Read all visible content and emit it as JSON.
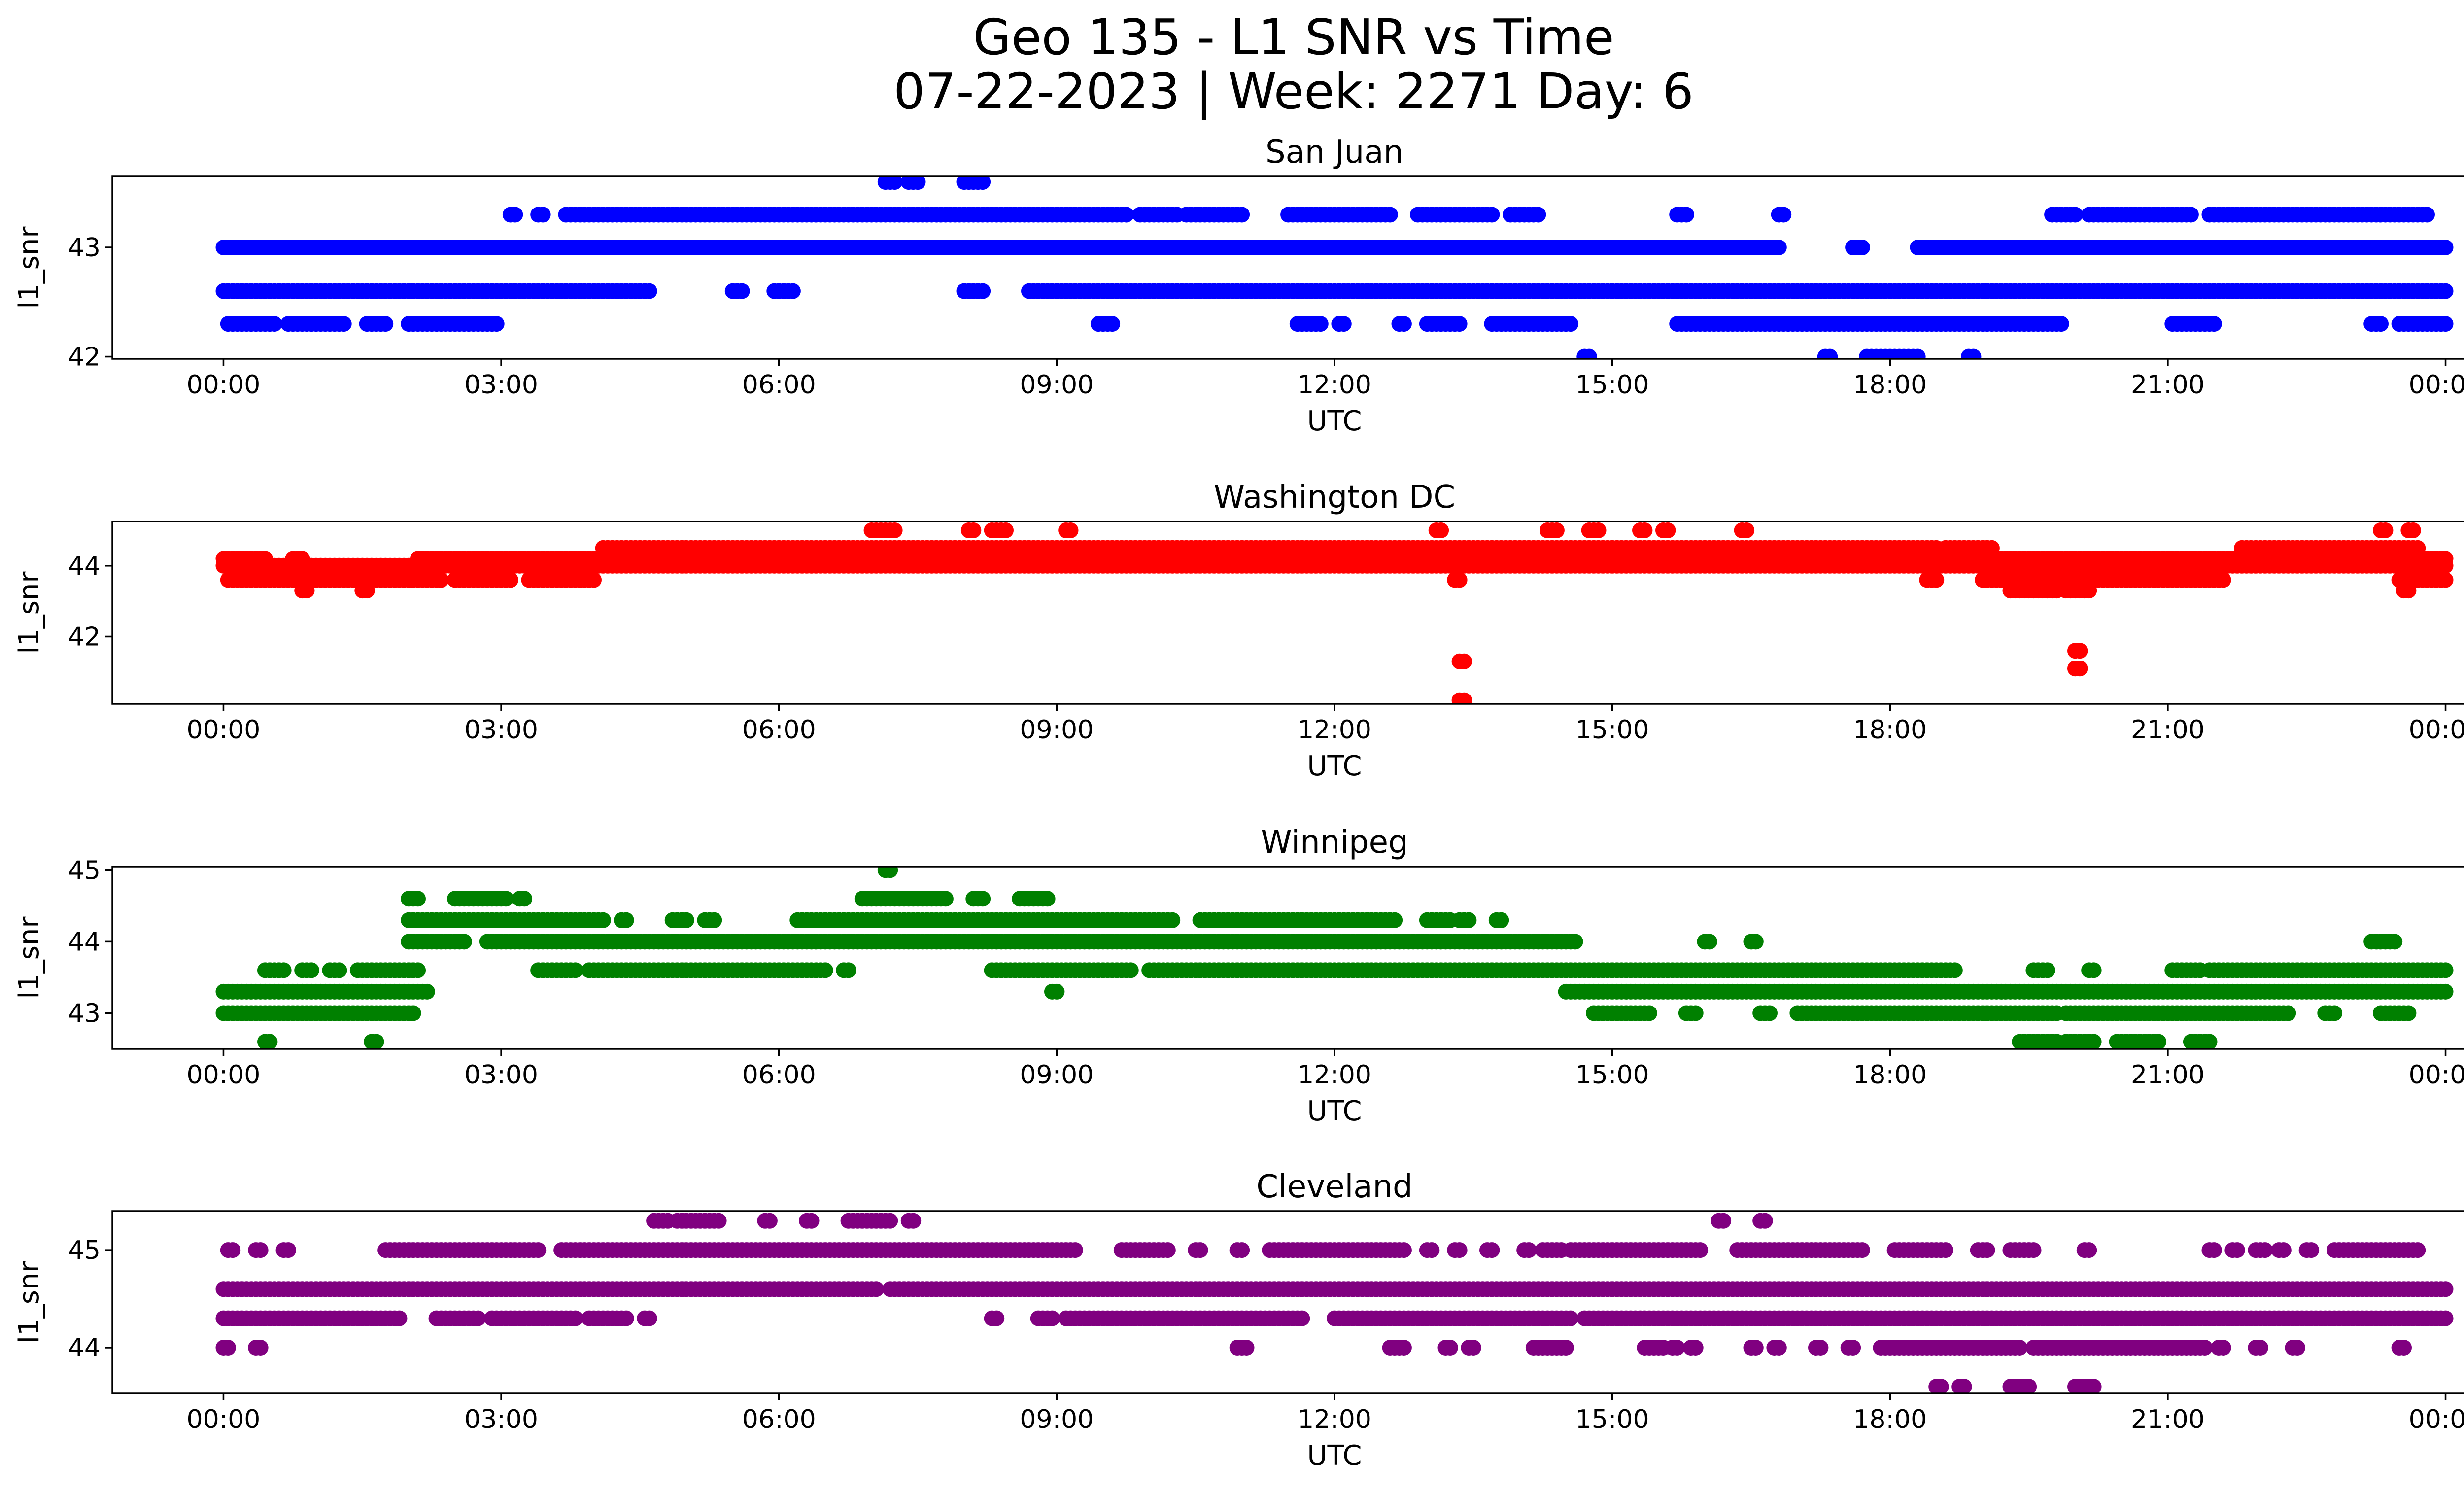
{
  "chart_data": {
    "type": "scatter",
    "title_line1": "Geo 135 - L1 SNR vs Time",
    "title_line2": "07-22-2023 | Week: 2271 Day: 6",
    "x_tick_labels": [
      "00:00",
      "03:00",
      "06:00",
      "09:00",
      "12:00",
      "15:00",
      "18:00",
      "21:00",
      "00:00"
    ],
    "xlim_hours": [
      -1.2,
      25.2
    ],
    "panels": [
      {
        "title": "San Juan",
        "xlabel": "UTC",
        "ylabel": "l1_snr",
        "color": "#0000ff",
        "ylim": [
          41.98,
          43.65
        ],
        "yticks": [
          42,
          43
        ],
        "bands": [
          {
            "y": 43.0,
            "segments": [
              [
                0.0,
                16.8
              ],
              [
                17.6,
                17.7
              ],
              [
                18.3,
                24.0
              ]
            ]
          },
          {
            "y": 42.6,
            "segments": [
              [
                0.0,
                4.6
              ],
              [
                5.5,
                5.6
              ],
              [
                5.95,
                6.15
              ],
              [
                8.0,
                8.2
              ],
              [
                8.7,
                24.0
              ]
            ]
          },
          {
            "y": 42.3,
            "segments": [
              [
                0.05,
                0.55
              ],
              [
                0.7,
                1.3
              ],
              [
                1.55,
                1.75
              ],
              [
                2.0,
                2.95
              ],
              [
                9.45,
                9.6
              ],
              [
                11.6,
                11.85
              ],
              [
                12.05,
                12.1
              ],
              [
                12.7,
                12.75
              ],
              [
                13.0,
                13.35
              ],
              [
                13.7,
                14.55
              ],
              [
                15.7,
                19.85
              ],
              [
                21.05,
                21.5
              ],
              [
                23.2,
                23.3
              ],
              [
                23.5,
                24.0
              ]
            ]
          },
          {
            "y": 43.3,
            "segments": [
              [
                3.1,
                3.15
              ],
              [
                3.4,
                3.45
              ],
              [
                3.7,
                9.75
              ],
              [
                9.9,
                10.3
              ],
              [
                10.4,
                11.0
              ],
              [
                11.5,
                12.6
              ],
              [
                12.9,
                13.7
              ],
              [
                13.9,
                14.2
              ],
              [
                15.7,
                15.8
              ],
              [
                16.8,
                16.85
              ],
              [
                19.75,
                20.0
              ],
              [
                20.15,
                21.25
              ],
              [
                21.45,
                23.8
              ]
            ]
          },
          {
            "y": 43.6,
            "segments": [
              [
                7.15,
                7.25
              ],
              [
                7.4,
                7.5
              ],
              [
                8.0,
                8.2
              ]
            ]
          },
          {
            "y": 42.0,
            "segments": [
              [
                14.7,
                14.75
              ],
              [
                17.3,
                17.35
              ],
              [
                17.75,
                18.3
              ],
              [
                18.85,
                18.9
              ]
            ]
          }
        ]
      },
      {
        "title": "Washington DC",
        "xlabel": "UTC",
        "ylabel": "l1_snr",
        "color": "#ff0000",
        "ylim": [
          40.1,
          45.25
        ],
        "yticks": [
          42,
          44
        ],
        "bands": [
          {
            "y": 44.0,
            "segments": [
              [
                0.0,
                24.0
              ]
            ]
          },
          {
            "y": 43.6,
            "segments": [
              [
                0.05,
                2.35
              ],
              [
                2.5,
                3.1
              ],
              [
                3.3,
                4.0
              ],
              [
                13.3,
                13.35
              ],
              [
                18.4,
                18.5
              ],
              [
                19.0,
                21.6
              ],
              [
                23.5,
                24.0
              ]
            ]
          },
          {
            "y": 44.2,
            "segments": [
              [
                0.0,
                0.45
              ],
              [
                0.75,
                0.85
              ],
              [
                2.1,
                24.0
              ]
            ]
          },
          {
            "y": 44.5,
            "segments": [
              [
                4.1,
                18.5
              ],
              [
                18.6,
                19.1
              ],
              [
                21.8,
                23.7
              ]
            ]
          },
          {
            "y": 45.0,
            "segments": [
              [
                7.0,
                7.25
              ],
              [
                8.05,
                8.1
              ],
              [
                8.3,
                8.45
              ],
              [
                9.1,
                9.15
              ],
              [
                13.1,
                13.15
              ],
              [
                14.3,
                14.4
              ],
              [
                14.75,
                14.85
              ],
              [
                15.3,
                15.35
              ],
              [
                15.55,
                15.6
              ],
              [
                16.4,
                16.45
              ],
              [
                23.3,
                23.35
              ],
              [
                23.6,
                23.65
              ]
            ]
          },
          {
            "y": 43.3,
            "segments": [
              [
                0.85,
                0.9
              ],
              [
                1.5,
                1.55
              ],
              [
                19.3,
                19.8
              ],
              [
                19.9,
                20.15
              ],
              [
                23.55,
                23.6
              ]
            ]
          },
          {
            "y": 41.6,
            "segments": [
              [
                20.0,
                20.05
              ]
            ]
          },
          {
            "y": 41.3,
            "segments": [
              [
                13.35,
                13.4
              ]
            ]
          },
          {
            "y": 41.1,
            "segments": [
              [
                20.0,
                20.05
              ]
            ]
          },
          {
            "y": 40.2,
            "segments": [
              [
                13.35,
                13.4
              ]
            ]
          }
        ]
      },
      {
        "title": "Winnipeg",
        "xlabel": "UTC",
        "ylabel": "l1_snr",
        "color": "#008000",
        "ylim": [
          42.5,
          45.05
        ],
        "yticks": [
          43,
          44,
          45
        ],
        "bands": [
          {
            "y": 43.0,
            "segments": [
              [
                0.0,
                2.05
              ],
              [
                14.8,
                15.4
              ],
              [
                15.8,
                15.9
              ],
              [
                16.6,
                16.7
              ],
              [
                17.0,
                19.8
              ],
              [
                19.9,
                22.3
              ],
              [
                22.7,
                22.8
              ],
              [
                23.3,
                23.6
              ]
            ]
          },
          {
            "y": 43.3,
            "segments": [
              [
                0.0,
                2.2
              ],
              [
                8.95,
                9.0
              ],
              [
                14.5,
                24.0
              ]
            ]
          },
          {
            "y": 43.6,
            "segments": [
              [
                0.45,
                0.65
              ],
              [
                0.85,
                0.95
              ],
              [
                1.15,
                1.25
              ],
              [
                1.45,
                2.1
              ],
              [
                3.4,
                3.8
              ],
              [
                3.95,
                6.5
              ],
              [
                6.7,
                6.75
              ],
              [
                8.3,
                9.8
              ],
              [
                10.0,
                18.7
              ],
              [
                19.55,
                19.7
              ],
              [
                20.15,
                20.2
              ],
              [
                21.05,
                21.35
              ],
              [
                21.45,
                24.0
              ]
            ]
          },
          {
            "y": 44.0,
            "segments": [
              [
                2.0,
                2.6
              ],
              [
                2.85,
                14.6
              ],
              [
                16.0,
                16.05
              ],
              [
                16.5,
                16.55
              ],
              [
                23.2,
                23.45
              ]
            ]
          },
          {
            "y": 44.3,
            "segments": [
              [
                2.0,
                4.1
              ],
              [
                4.3,
                4.35
              ],
              [
                4.85,
                5.0
              ],
              [
                5.2,
                5.3
              ],
              [
                6.2,
                10.25
              ],
              [
                10.55,
                12.65
              ],
              [
                13.0,
                13.25
              ],
              [
                13.35,
                13.45
              ],
              [
                13.75,
                13.8
              ]
            ]
          },
          {
            "y": 44.6,
            "segments": [
              [
                2.0,
                2.1
              ],
              [
                2.5,
                3.05
              ],
              [
                3.2,
                3.25
              ],
              [
                6.9,
                7.8
              ],
              [
                8.1,
                8.2
              ],
              [
                8.6,
                8.9
              ]
            ]
          },
          {
            "y": 45.0,
            "segments": [
              [
                7.15,
                7.2
              ]
            ]
          },
          {
            "y": 42.6,
            "segments": [
              [
                0.45,
                0.5
              ],
              [
                1.6,
                1.65
              ],
              [
                19.4,
                19.8
              ],
              [
                19.9,
                20.2
              ],
              [
                20.45,
                20.9
              ],
              [
                21.25,
                21.45
              ]
            ]
          }
        ]
      },
      {
        "title": "Cleveland",
        "xlabel": "UTC",
        "ylabel": "l1_snr",
        "color": "#800080",
        "ylim": [
          43.53,
          45.4
        ],
        "yticks": [
          44,
          45
        ],
        "bands": [
          {
            "y": 44.6,
            "segments": [
              [
                0.0,
                7.05
              ],
              [
                7.2,
                24.0
              ]
            ]
          },
          {
            "y": 44.3,
            "segments": [
              [
                0.0,
                1.9
              ],
              [
                2.3,
                2.75
              ],
              [
                2.9,
                3.8
              ],
              [
                3.95,
                4.35
              ],
              [
                4.55,
                4.6
              ],
              [
                8.3,
                8.35
              ],
              [
                8.8,
                8.95
              ],
              [
                9.1,
                11.65
              ],
              [
                12.0,
                14.55
              ],
              [
                14.7,
                24.0
              ]
            ]
          },
          {
            "y": 45.0,
            "segments": [
              [
                0.05,
                0.1
              ],
              [
                0.35,
                0.4
              ],
              [
                0.65,
                0.7
              ],
              [
                1.75,
                3.4
              ],
              [
                3.65,
                9.2
              ],
              [
                9.7,
                10.2
              ],
              [
                10.5,
                10.55
              ],
              [
                10.95,
                11.0
              ],
              [
                11.3,
                12.75
              ],
              [
                13.0,
                13.05
              ],
              [
                13.3,
                13.35
              ],
              [
                13.65,
                13.7
              ],
              [
                14.05,
                14.1
              ],
              [
                14.25,
                14.45
              ],
              [
                14.55,
                15.95
              ],
              [
                16.35,
                17.7
              ],
              [
                18.05,
                18.6
              ],
              [
                18.95,
                19.05
              ],
              [
                19.3,
                19.55
              ],
              [
                20.1,
                20.15
              ],
              [
                21.45,
                21.5
              ],
              [
                21.7,
                21.75
              ],
              [
                21.95,
                22.05
              ],
              [
                22.2,
                22.25
              ],
              [
                22.5,
                22.55
              ],
              [
                22.8,
                23.7
              ]
            ]
          },
          {
            "y": 45.3,
            "segments": [
              [
                4.65,
                4.8
              ],
              [
                4.9,
                5.35
              ],
              [
                5.85,
                5.9
              ],
              [
                6.3,
                6.35
              ],
              [
                6.75,
                7.2
              ],
              [
                7.4,
                7.45
              ],
              [
                16.15,
                16.2
              ],
              [
                16.6,
                16.65
              ]
            ]
          },
          {
            "y": 44.0,
            "segments": [
              [
                0.0,
                0.05
              ],
              [
                0.35,
                0.4
              ],
              [
                10.95,
                11.05
              ],
              [
                12.6,
                12.75
              ],
              [
                13.2,
                13.25
              ],
              [
                13.45,
                13.5
              ],
              [
                14.15,
                14.5
              ],
              [
                15.35,
                15.55
              ],
              [
                15.65,
                15.7
              ],
              [
                15.85,
                15.9
              ],
              [
                16.5,
                16.55
              ],
              [
                16.75,
                16.8
              ],
              [
                17.2,
                17.25
              ],
              [
                17.55,
                17.6
              ],
              [
                17.9,
                19.4
              ],
              [
                19.55,
                20.8
              ],
              [
                20.85,
                21.4
              ],
              [
                21.55,
                21.6
              ],
              [
                21.95,
                22.0
              ],
              [
                22.35,
                22.4
              ],
              [
                23.5,
                23.55
              ]
            ]
          },
          {
            "y": 43.6,
            "segments": [
              [
                18.5,
                18.55
              ],
              [
                18.75,
                18.8
              ],
              [
                19.3,
                19.5
              ],
              [
                20.0,
                20.2
              ]
            ]
          }
        ]
      }
    ]
  }
}
